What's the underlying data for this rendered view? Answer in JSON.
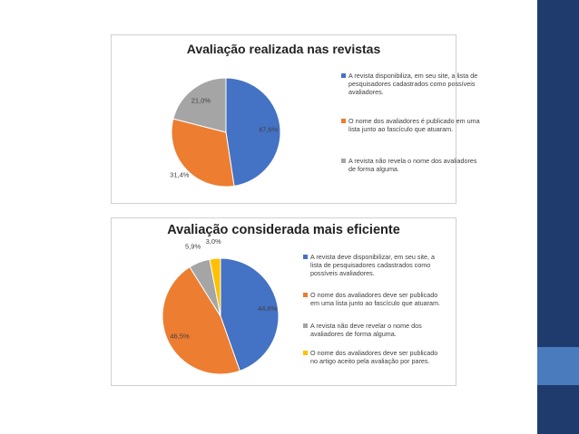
{
  "chart_data": [
    {
      "type": "pie",
      "title": "Avaliação realizada nas revistas",
      "legend_position": "right",
      "slices": [
        {
          "label": "A revista disponibiliza, em seu site, a lista de pesquisadores cadastrados como possíveis avaliadores.",
          "value": 47.6,
          "value_label": "47,6%",
          "color": "#4472c4"
        },
        {
          "label": "O nome dos avaliadores é publicado em uma lista junto ao fascículo que atuaram.",
          "value": 31.4,
          "value_label": "31,4%",
          "color": "#ed7d31"
        },
        {
          "label": "A revista não revela o nome dos avaliadores de forma alguma.",
          "value": 21.0,
          "value_label": "21,0%",
          "color": "#a5a5a5"
        }
      ]
    },
    {
      "type": "pie",
      "title": "Avaliação considerada mais eficiente",
      "legend_position": "right",
      "slices": [
        {
          "label": "A revista deve disponibilizar, em seu site, a lista de pesquisadores cadastrados como possíveis avaliadores.",
          "value": 44.6,
          "value_label": "44,6%",
          "color": "#4472c4"
        },
        {
          "label": "O nome dos avaliadores deve ser publicado em uma lista junto ao fascículo que atuaram.",
          "value": 46.5,
          "value_label": "46,5%",
          "color": "#ed7d31"
        },
        {
          "label": "A revista não deve revelar o nome dos avaliadores de forma alguma.",
          "value": 5.9,
          "value_label": "5,9%",
          "color": "#a5a5a5"
        },
        {
          "label": "O nome dos avaliadores deve ser publicado no artigo aceito pela avaliação por pares.",
          "value": 3.0,
          "value_label": "3,0%",
          "color": "#ffc000"
        }
      ]
    }
  ],
  "slide": {
    "sidebar_color": "#1f3b6e",
    "accent_block_color": "#4a7bbd"
  }
}
